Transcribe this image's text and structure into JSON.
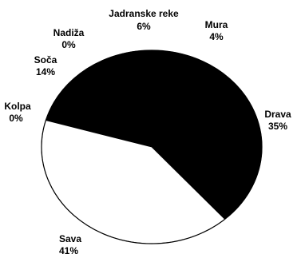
{
  "chart_data": {
    "type": "pie",
    "title": "",
    "slices": [
      {
        "label": "Kolpa",
        "value": 0,
        "value_label": "0%",
        "fill": "#ffffff"
      },
      {
        "label": "Soča",
        "value": 14,
        "value_label": "14%",
        "fill": "#000000"
      },
      {
        "label": "Nadiža",
        "value": 0,
        "value_label": "0%",
        "fill": "#000000"
      },
      {
        "label": "Jadranske reke",
        "value": 6,
        "value_label": "6%",
        "fill": "#000000"
      },
      {
        "label": "Mura",
        "value": 4,
        "value_label": "4%",
        "fill": "#000000"
      },
      {
        "label": "Drava",
        "value": 35,
        "value_label": "35%",
        "fill": "#000000"
      },
      {
        "label": "Sava",
        "value": 41,
        "value_label": "41%",
        "fill": "#ffffff"
      }
    ],
    "legend": "none",
    "border_color": "#000000"
  }
}
